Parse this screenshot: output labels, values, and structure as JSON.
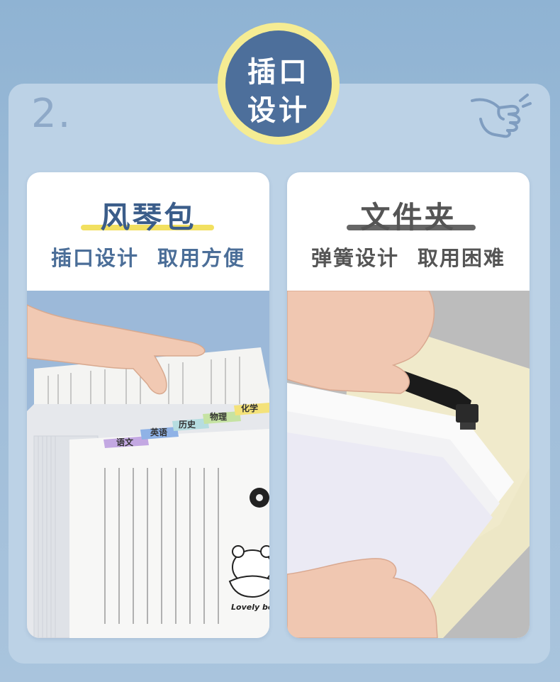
{
  "step_number": "2.",
  "badge": {
    "line1": "插口",
    "line2": "设计"
  },
  "left_card": {
    "title": "风琴包",
    "subtitle": "插口设计  取用方便",
    "tabs": [
      "语文",
      "英语",
      "历史",
      "物理",
      "化学"
    ],
    "sticker_text": "Lovely be"
  },
  "right_card": {
    "title": "文件夹",
    "subtitle": "弹簧设计  取用困难"
  },
  "colors": {
    "background": "#9ebcd8",
    "panel": "#bcd2e6",
    "badge_fill": "#4d6f9b",
    "badge_ring": "#f5ec93",
    "left_title": "#3b5d8a",
    "left_underline": "#f2e060",
    "right_title": "#555555",
    "right_underline": "#666666"
  },
  "icons": [
    "pointing-hand-icon"
  ]
}
